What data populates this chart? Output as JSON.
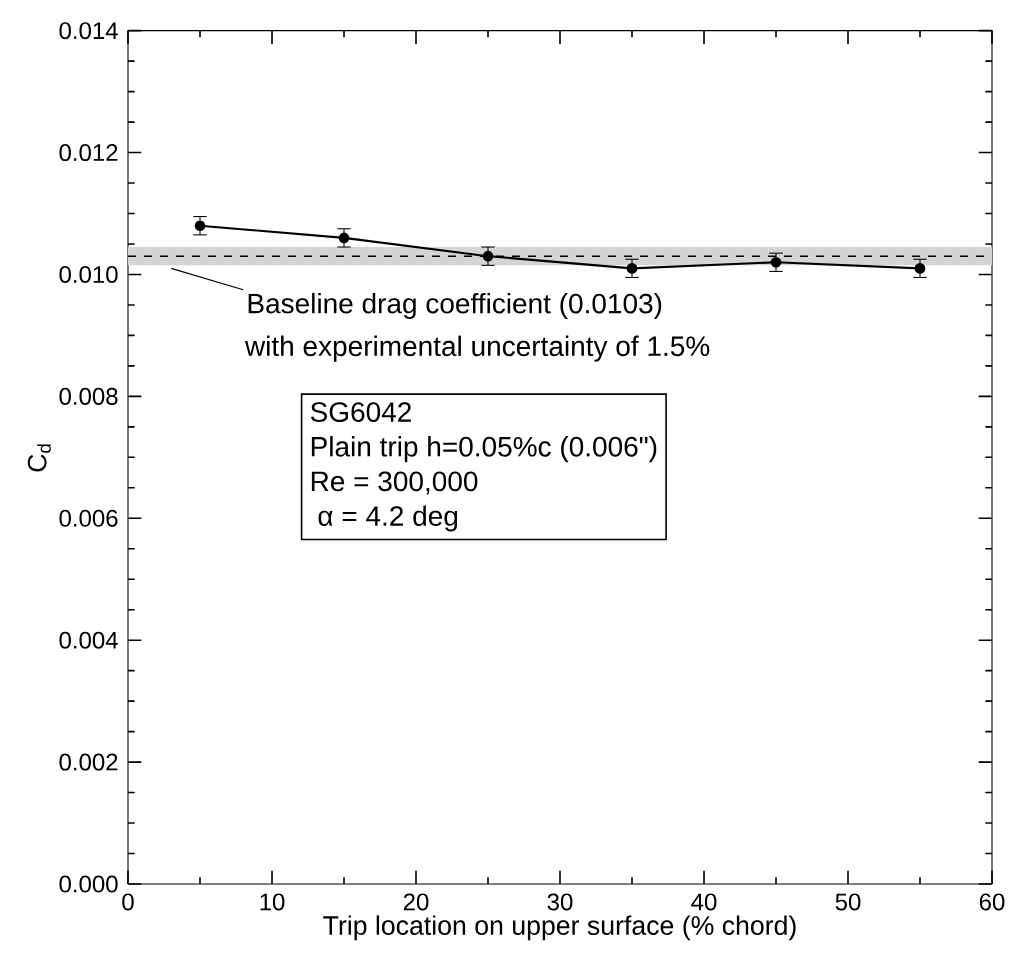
{
  "chart_data": {
    "type": "line",
    "xlabel": "Trip location on upper surface (% chord)",
    "ylabel": "C$_{d}$",
    "x": [
      5,
      15,
      25,
      35,
      45,
      55
    ],
    "series": [
      {
        "color": "#000000",
        "values": [
          0.0108,
          0.0106,
          0.0103,
          0.0101,
          0.0102,
          0.0101
        ],
        "errors": [
          0.00015,
          0.00015,
          0.00015,
          0.00015,
          0.00015,
          0.00015
        ]
      }
    ],
    "xlim": [
      0,
      60
    ],
    "xticks": [
      0,
      10,
      20,
      30,
      40,
      50,
      60
    ],
    "ylim": [
      0,
      0.014
    ],
    "yticks": [
      {
        "value": 0,
        "label": "0.000"
      },
      {
        "value": 0.002,
        "label": "0.002"
      },
      {
        "value": 0.004,
        "label": "0.004"
      },
      {
        "value": 0.006,
        "label": "0.006"
      },
      {
        "value": 0.008,
        "label": "0.008"
      },
      {
        "value": 0.01,
        "label": "0.010"
      },
      {
        "value": 0.012,
        "label": "0.012"
      },
      {
        "value": 0.014,
        "label": "0.014"
      }
    ],
    "ref_lines": [
      {
        "axis": "y",
        "value": 0.0103,
        "color": "#000000",
        "line_style": "dashed"
      }
    ],
    "bands": [
      {
        "axis": "y",
        "from": 0.01015,
        "to": 0.01045,
        "color": "#d4d4d4"
      }
    ],
    "annotations": [
      {
        "text": "Baseline drag coefficient (0.0103)",
        "x": 3,
        "y": 0.0101
      },
      "with experimental uncertainty of 1.5%",
      "SG6042",
      "Plain trip h=0.05%c (0.006\")",
      "Re = 300,000",
      " α = 4.2 deg"
    ],
    "marker": "circle",
    "line_style": "solid",
    "grid": false
  }
}
